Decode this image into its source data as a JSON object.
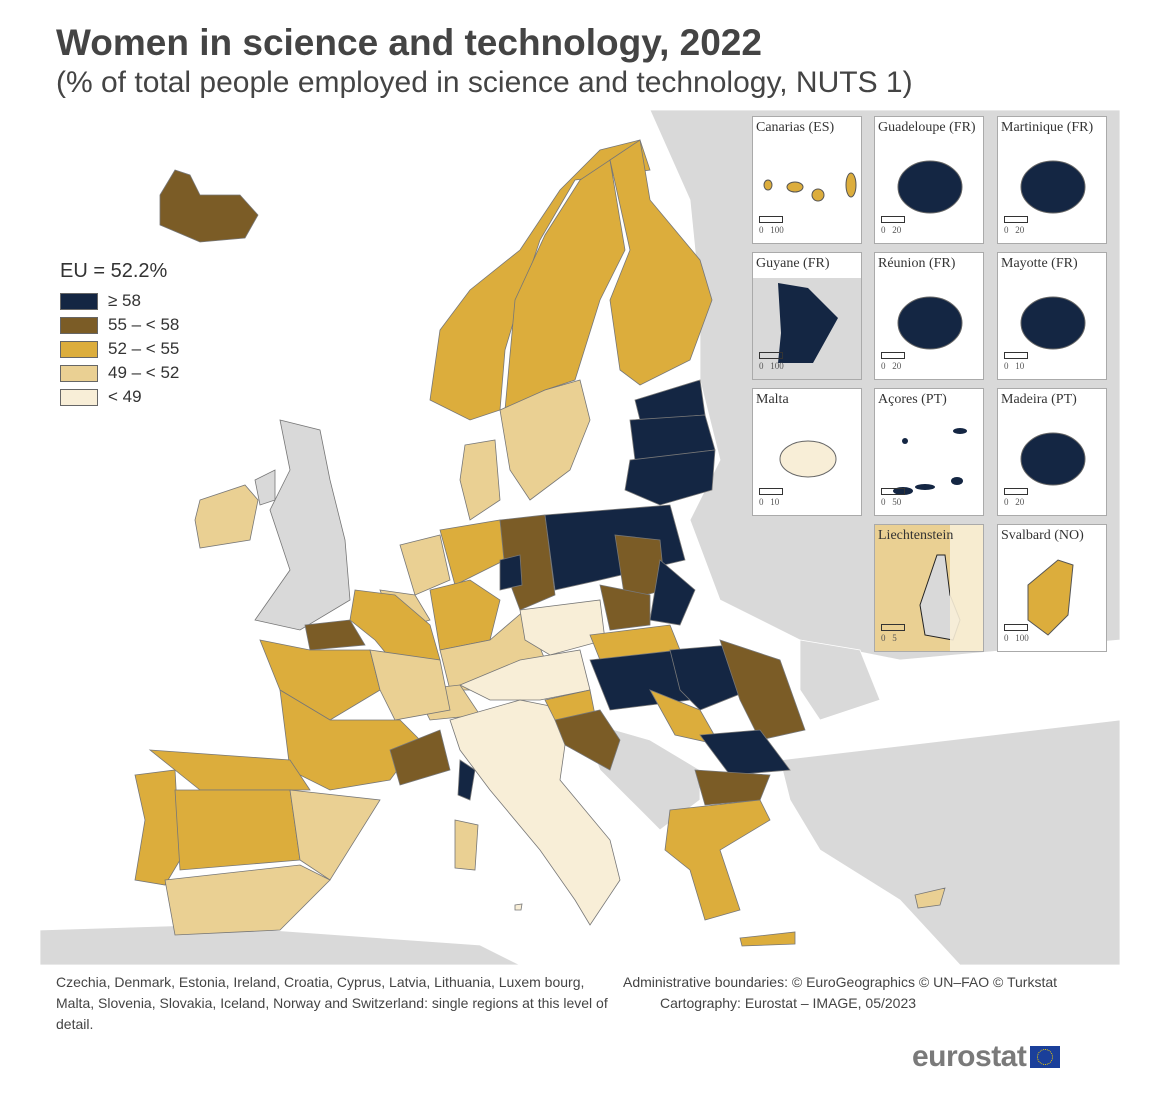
{
  "title": "Women in science and technology, 2022",
  "subtitle": "(% of total people employed in science and technology, NUTS 1)",
  "legend": {
    "heading": "EU = 52.2%",
    "classes": [
      {
        "id": "c1",
        "label": "≥ 58",
        "color": "#142643"
      },
      {
        "id": "c2",
        "label": "55 – < 58",
        "color": "#7b5c26"
      },
      {
        "id": "c3",
        "label": "52 – < 55",
        "color": "#dcad3c"
      },
      {
        "id": "c4",
        "label": "49 – < 52",
        "color": "#ead093"
      },
      {
        "id": "c5",
        "label": "< 49",
        "color": "#f8eed7"
      }
    ],
    "no_data_color": "#d9d9d9"
  },
  "regions": [
    {
      "name": "Iceland",
      "class": "c2"
    },
    {
      "name": "Ireland",
      "class": "c4"
    },
    {
      "name": "Norway",
      "class": "c3"
    },
    {
      "name": "Sweden north",
      "class": "c3"
    },
    {
      "name": "Sweden south",
      "class": "c4"
    },
    {
      "name": "Finland",
      "class": "c3"
    },
    {
      "name": "Estonia",
      "class": "c1"
    },
    {
      "name": "Latvia",
      "class": "c1"
    },
    {
      "name": "Lithuania",
      "class": "c1"
    },
    {
      "name": "Denmark",
      "class": "c4"
    },
    {
      "name": "Netherlands",
      "class": "c4"
    },
    {
      "name": "Belgium",
      "class": "c4"
    },
    {
      "name": "Germany north",
      "class": "c3"
    },
    {
      "name": "Germany east",
      "class": "c2"
    },
    {
      "name": "Berlin",
      "class": "c1"
    },
    {
      "name": "Germany west",
      "class": "c3"
    },
    {
      "name": "Germany south",
      "class": "c4"
    },
    {
      "name": "Poland north",
      "class": "c1"
    },
    {
      "name": "Poland central",
      "class": "c2"
    },
    {
      "name": "Poland east",
      "class": "c1"
    },
    {
      "name": "Poland south",
      "class": "c2"
    },
    {
      "name": "Czechia",
      "class": "c5"
    },
    {
      "name": "Austria",
      "class": "c5"
    },
    {
      "name": "Switzerland",
      "class": "c4"
    },
    {
      "name": "France north",
      "class": "c3"
    },
    {
      "name": "Normandie",
      "class": "c2"
    },
    {
      "name": "France west",
      "class": "c3"
    },
    {
      "name": "France centre",
      "class": "c4"
    },
    {
      "name": "France south",
      "class": "c3"
    },
    {
      "name": "Provence",
      "class": "c2"
    },
    {
      "name": "Corse",
      "class": "c1"
    },
    {
      "name": "Portugal",
      "class": "c3"
    },
    {
      "name": "Spain centre",
      "class": "c3"
    },
    {
      "name": "Spain north",
      "class": "c3"
    },
    {
      "name": "Spain east",
      "class": "c4"
    },
    {
      "name": "Spain south",
      "class": "c4"
    },
    {
      "name": "Italy",
      "class": "c5"
    },
    {
      "name": "Sardegna",
      "class": "c4"
    },
    {
      "name": "Slovakia",
      "class": "c3"
    },
    {
      "name": "Hungary",
      "class": "c1"
    },
    {
      "name": "Slovenia",
      "class": "c3"
    },
    {
      "name": "Croatia",
      "class": "c2"
    },
    {
      "name": "Romania north",
      "class": "c1"
    },
    {
      "name": "Romania east",
      "class": "c2"
    },
    {
      "name": "Romania west",
      "class": "c3"
    },
    {
      "name": "Bulgaria",
      "class": "c1"
    },
    {
      "name": "Bulgaria south",
      "class": "c2"
    },
    {
      "name": "Greece",
      "class": "c3"
    },
    {
      "name": "Crete",
      "class": "c3"
    },
    {
      "name": "Cyprus",
      "class": "c4"
    },
    {
      "name": "Malta",
      "class": "c5"
    }
  ],
  "insets": [
    {
      "label": "Canarias (ES)",
      "class": "c3",
      "scale": [
        "0",
        "100"
      ]
    },
    {
      "label": "Guadeloupe (FR)",
      "class": "c1",
      "scale": [
        "0",
        "20"
      ]
    },
    {
      "label": "Martinique (FR)",
      "class": "c1",
      "scale": [
        "0",
        "20"
      ]
    },
    {
      "label": "Guyane (FR)",
      "class": "c1",
      "scale": [
        "0",
        "100"
      ]
    },
    {
      "label": "Réunion (FR)",
      "class": "c1",
      "scale": [
        "0",
        "20"
      ]
    },
    {
      "label": "Mayotte (FR)",
      "class": "c1",
      "scale": [
        "0",
        "10"
      ]
    },
    {
      "label": "Malta",
      "class": "c5",
      "scale": [
        "0",
        "10"
      ]
    },
    {
      "label": "Açores (PT)",
      "class": "c1",
      "scale": [
        "0",
        "50"
      ]
    },
    {
      "label": "Madeira (PT)",
      "class": "c1",
      "scale": [
        "0",
        "20"
      ]
    },
    {
      "label": "Liechtenstein",
      "class": "nodata",
      "scale": [
        "0",
        "5"
      ]
    },
    {
      "label": "Svalbard (NO)",
      "class": "c3",
      "scale": [
        "0",
        "100"
      ]
    }
  ],
  "footnote": "Czechia, Denmark, Estonia, Ireland, Croatia, Cyprus, Latvia, Lithuania, Luxem bourg, Malta, Slovenia, Slovakia, Iceland, Norway and Switzerland: single regions at this level of detail.",
  "credits": {
    "boundaries": "Administrative boundaries: © EuroGeographics © UN–FAO © Turkstat",
    "cartography": "Cartography: Eurostat – IMAGE, 05/2023"
  },
  "logo_text": "eurostat"
}
